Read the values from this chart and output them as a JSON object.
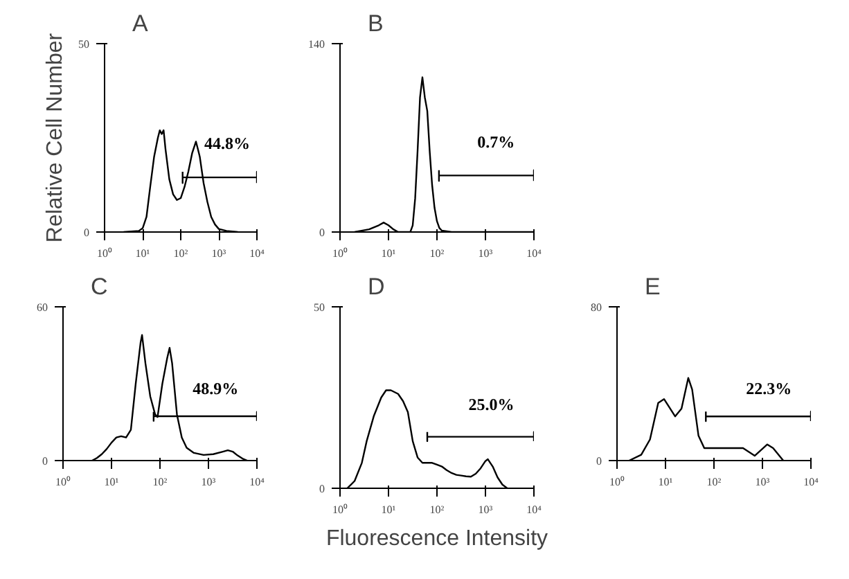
{
  "chart_data": [
    {
      "type": "line",
      "title": "A",
      "ylabel": "Relative Cell Number",
      "log": "x",
      "xlim": [
        1,
        10000
      ],
      "xticks": [
        {
          "value": 1,
          "label": "10⁰"
        },
        {
          "value": 10,
          "label": "10¹"
        },
        {
          "value": 100,
          "label": "10²"
        },
        {
          "value": 1000,
          "label": "10³"
        },
        {
          "value": 10000,
          "label": "10⁴"
        }
      ],
      "ylim": [
        0,
        50
      ],
      "yticks": [
        0,
        50
      ],
      "series": [
        {
          "color": "#000000",
          "x": [
            3.16,
            7.94,
            10,
            12.6,
            15.8,
            20,
            25.1,
            28.2,
            31.6,
            35.5,
            39.8,
            50.1,
            63.1,
            79.4,
            100,
            126,
            158,
            200,
            251,
            282,
            316,
            398,
            501,
            631,
            794,
            1000,
            1585,
            3162
          ],
          "values": [
            0,
            0.3,
            1,
            4,
            12,
            20,
            25,
            27,
            26,
            27,
            22,
            14,
            10,
            8.5,
            9,
            12,
            16,
            21,
            24,
            22,
            20,
            13,
            8,
            4,
            2,
            0.8,
            0.3,
            0
          ]
        },
        {
          "type": "line",
          "color": "#000000",
          "x": [
            112,
            112,
            112,
            10000,
            10000,
            10000
          ],
          "values": [
            16,
            13,
            14.5,
            14.5,
            16,
            13
          ]
        }
      ],
      "annotations": [
        "44.8%"
      ]
    },
    {
      "type": "line",
      "title": "B",
      "log": "x",
      "xlim": [
        1,
        10000
      ],
      "xticks": [
        {
          "value": 1,
          "label": "10⁰"
        },
        {
          "value": 10,
          "label": "10¹"
        },
        {
          "value": 100,
          "label": "10²"
        },
        {
          "value": 1000,
          "label": "10³"
        },
        {
          "value": 10000,
          "label": "10⁴"
        }
      ],
      "ylim": [
        0,
        140
      ],
      "yticks": [
        0,
        140
      ],
      "series": [
        {
          "color": "#000000",
          "x": [
            2.0,
            3.98,
            6.31,
            7.94,
            10,
            12.6,
            15.8,
            28.2,
            31.6,
            35.5,
            39.8,
            44.7,
            50.1,
            56.2,
            63.1,
            70.8,
            79.4,
            89.1,
            100,
            112,
            126,
            200,
            10000
          ],
          "values": [
            0,
            2,
            5,
            7,
            5,
            2,
            0,
            0,
            5,
            25,
            60,
            100,
            115,
            100,
            90,
            60,
            35,
            18,
            8,
            3,
            1,
            0,
            0
          ]
        },
        {
          "type": "line",
          "color": "#000000",
          "x": [
            110,
            110,
            110,
            10000,
            10000,
            10000
          ],
          "values": [
            46,
            38,
            42,
            42,
            46,
            38
          ]
        }
      ],
      "annotations": [
        "0.7%"
      ]
    },
    {
      "type": "line",
      "title": "C",
      "log": "x",
      "xlim": [
        1,
        10000
      ],
      "xticks": [
        {
          "value": 1,
          "label": "10⁰"
        },
        {
          "value": 10,
          "label": "10¹"
        },
        {
          "value": 100,
          "label": "10²"
        },
        {
          "value": 1000,
          "label": "10³"
        },
        {
          "value": 10000,
          "label": "10⁴"
        }
      ],
      "ylim": [
        0,
        60
      ],
      "yticks": [
        0,
        60
      ],
      "series": [
        {
          "color": "#000000",
          "x": [
            3.98,
            5.01,
            6.31,
            7.94,
            10,
            12.6,
            15.8,
            20,
            25.1,
            31.6,
            39.8,
            42.7,
            50.1,
            63.1,
            79.4,
            89.1,
            112,
            141,
            158,
            178,
            224,
            282,
            355,
            501,
            794,
            1259,
            1995,
            2512,
            3162,
            3981,
            5012,
            6310
          ],
          "values": [
            0,
            1,
            2.5,
            4.5,
            7,
            9,
            9.5,
            9,
            12,
            30,
            46,
            49,
            38,
            25,
            18,
            17,
            30,
            40,
            44,
            38,
            18,
            9,
            5,
            3,
            2.2,
            2.5,
            3.5,
            4,
            3.5,
            2,
            0.8,
            0
          ]
        },
        {
          "type": "line",
          "color": "#000000",
          "x": [
            74,
            74,
            74,
            10000,
            10000,
            10000
          ],
          "values": [
            19,
            15.5,
            17.3,
            17.3,
            19,
            15.5
          ]
        }
      ],
      "annotations": [
        "48.9%"
      ]
    },
    {
      "type": "line",
      "title": "D",
      "xlabel": "Fluorescence Intensity",
      "log": "x",
      "xlim": [
        1,
        10000
      ],
      "xticks": [
        {
          "value": 1,
          "label": "10⁰"
        },
        {
          "value": 10,
          "label": "10¹"
        },
        {
          "value": 100,
          "label": "10²"
        },
        {
          "value": 1000,
          "label": "10³"
        },
        {
          "value": 10000,
          "label": "10⁴"
        }
      ],
      "ylim": [
        0,
        50
      ],
      "yticks": [
        0,
        50
      ],
      "series": [
        {
          "color": "#000000",
          "x": [
            1.41,
            2.0,
            2.82,
            3.55,
            5.01,
            7.08,
            8.91,
            11.2,
            15.8,
            20,
            25.1,
            31.6,
            39.8,
            50.1,
            63.1,
            79.4,
            100,
            126,
            158,
            200,
            251,
            316,
            398,
            501,
            631,
            794,
            1000,
            1122,
            1413,
            1778,
            2239,
            2818
          ],
          "values": [
            0,
            2,
            7,
            13,
            20,
            25,
            27,
            27,
            26,
            24,
            21,
            13,
            8.5,
            7,
            7,
            7,
            6.5,
            6,
            5,
            4.2,
            3.7,
            3.5,
            3.3,
            3.2,
            4,
            5.5,
            7.5,
            8,
            6,
            3,
            1,
            0
          ]
        },
        {
          "type": "line",
          "color": "#000000",
          "x": [
            63.1,
            63.1,
            63.1,
            10000,
            10000,
            10000
          ],
          "values": [
            15.5,
            13,
            14.2,
            14.2,
            15.5,
            13
          ]
        }
      ],
      "annotations": [
        "25.0%"
      ]
    },
    {
      "type": "line",
      "title": "E",
      "log": "x",
      "xlim": [
        1,
        10000
      ],
      "xticks": [
        {
          "value": 1,
          "label": "10⁰"
        },
        {
          "value": 10,
          "label": "10¹"
        },
        {
          "value": 100,
          "label": "10²"
        },
        {
          "value": 1000,
          "label": "10³"
        },
        {
          "value": 10000,
          "label": "10⁴"
        }
      ],
      "ylim": [
        0,
        80
      ],
      "yticks": [
        0,
        80
      ],
      "series": [
        {
          "color": "#000000",
          "x": [
            1.78,
            3.16,
            4.79,
            7.08,
            9.33,
            15.8,
            21.4,
            29.5,
            35.5,
            47.9,
            63.1,
            100,
            200,
            398,
            692,
            1259,
            1660,
            2692
          ],
          "values": [
            0,
            3,
            11,
            30,
            32,
            23,
            27,
            43,
            37,
            13,
            6.5,
            6.5,
            6.5,
            6.5,
            2.5,
            8.4,
            6.5,
            0
          ]
        },
        {
          "type": "line",
          "color": "#000000",
          "x": [
            68,
            68,
            68,
            10000,
            10000,
            10000
          ],
          "values": [
            25.5,
            20.5,
            23,
            23,
            25.5,
            20.5
          ]
        }
      ],
      "annotations": [
        "22.3%"
      ]
    }
  ]
}
